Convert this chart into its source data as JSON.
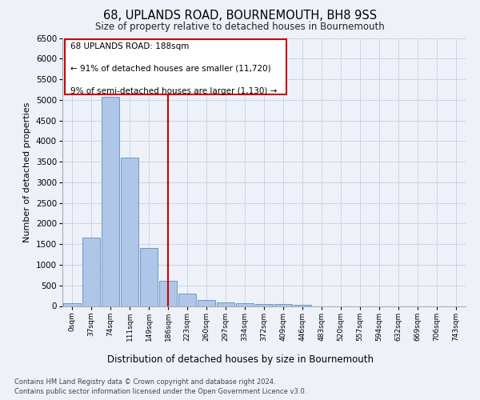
{
  "title": "68, UPLANDS ROAD, BOURNEMOUTH, BH8 9SS",
  "subtitle": "Size of property relative to detached houses in Bournemouth",
  "xlabel": "Distribution of detached houses by size in Bournemouth",
  "ylabel": "Number of detached properties",
  "footnote1": "Contains HM Land Registry data © Crown copyright and database right 2024.",
  "footnote2": "Contains public sector information licensed under the Open Government Licence v3.0.",
  "annotation_title": "68 UPLANDS ROAD: 188sqm",
  "annotation_left": "← 91% of detached houses are smaller (11,720)",
  "annotation_right": "9% of semi-detached houses are larger (1,130) →",
  "categories": [
    "0sqm",
    "37sqm",
    "74sqm",
    "111sqm",
    "149sqm",
    "186sqm",
    "223sqm",
    "260sqm",
    "297sqm",
    "334sqm",
    "372sqm",
    "409sqm",
    "446sqm",
    "483sqm",
    "520sqm",
    "557sqm",
    "594sqm",
    "632sqm",
    "669sqm",
    "706sqm",
    "743sqm"
  ],
  "values": [
    75,
    1650,
    5080,
    3600,
    1400,
    620,
    310,
    145,
    85,
    60,
    55,
    50,
    35,
    0,
    0,
    0,
    0,
    0,
    0,
    0,
    0
  ],
  "bar_color": "#aec6e8",
  "bar_edge_color": "#5a8fc0",
  "vline_color": "#cc0000",
  "annotation_box_color": "#cc0000",
  "grid_color": "#c8d4e8",
  "ylim": [
    0,
    6500
  ],
  "yticks": [
    0,
    500,
    1000,
    1500,
    2000,
    2500,
    3000,
    3500,
    4000,
    4500,
    5000,
    5500,
    6000,
    6500
  ],
  "background_color": "#eef2f8"
}
